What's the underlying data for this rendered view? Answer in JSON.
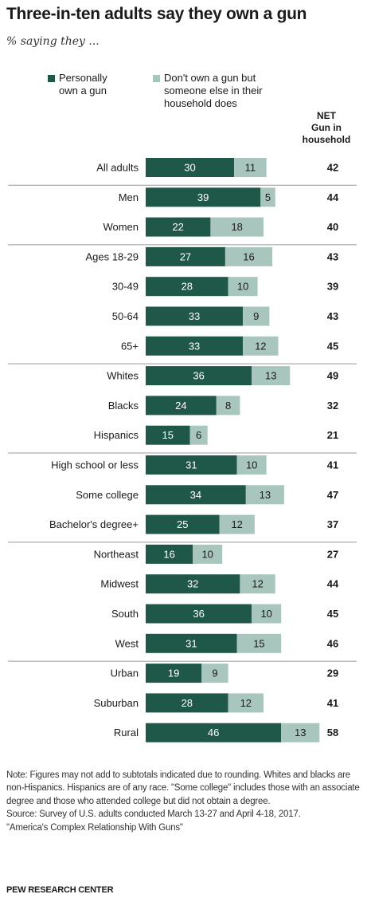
{
  "title": "Three-in-ten adults say they own a gun",
  "subtitle": "% saying they ...",
  "colors": {
    "personal": "#1f5848",
    "household": "#a9c6be",
    "rule": "#999999"
  },
  "legend": [
    {
      "label": "Personally\nown a gun",
      "color_key": "personal"
    },
    {
      "label": "Don't own a gun but\nsomeone else in their\nhousehold does",
      "color_key": "household"
    }
  ],
  "net_header": "NET\nGun in\nhousehold",
  "chart_data": {
    "type": "bar",
    "stacked": true,
    "orientation": "horizontal",
    "categories": [
      "All adults",
      "Men",
      "Women",
      "Ages 18-29",
      "30-49",
      "50-64",
      "65+",
      "Whites",
      "Blacks",
      "Hispanics",
      "High school or less",
      "Some college",
      "Bachelor's degree+",
      "Northeast",
      "Midwest",
      "South",
      "West",
      "Urban",
      "Suburban",
      "Rural"
    ],
    "groups": [
      [
        0
      ],
      [
        1,
        2
      ],
      [
        3,
        4,
        5,
        6
      ],
      [
        7,
        8,
        9
      ],
      [
        10,
        11,
        12
      ],
      [
        13,
        14,
        15,
        16
      ],
      [
        17,
        18,
        19
      ]
    ],
    "series": [
      {
        "name": "Personally own a gun",
        "values": [
          30,
          39,
          22,
          27,
          28,
          33,
          33,
          36,
          24,
          15,
          31,
          34,
          25,
          16,
          32,
          36,
          31,
          19,
          28,
          46
        ]
      },
      {
        "name": "Don't own a gun but someone else in their household does",
        "values": [
          11,
          5,
          18,
          16,
          10,
          9,
          12,
          13,
          8,
          6,
          10,
          13,
          12,
          10,
          12,
          10,
          15,
          9,
          12,
          13
        ]
      }
    ],
    "net": [
      42,
      44,
      40,
      43,
      39,
      43,
      45,
      49,
      32,
      21,
      41,
      47,
      37,
      27,
      44,
      45,
      46,
      29,
      41,
      58
    ],
    "xlim": [
      0,
      60
    ]
  },
  "footer": "Note: Figures may not add to subtotals indicated due to rounding. Whites and blacks are non-Hispanics. Hispanics are of any race. \"Some college\" includes those with an associate degree and those who attended college but did not obtain a degree.\nSource: Survey of U.S. adults conducted March 13-27 and April 4-18, 2017.\n\"America's Complex Relationship With Guns\"",
  "brand": "PEW RESEARCH CENTER"
}
